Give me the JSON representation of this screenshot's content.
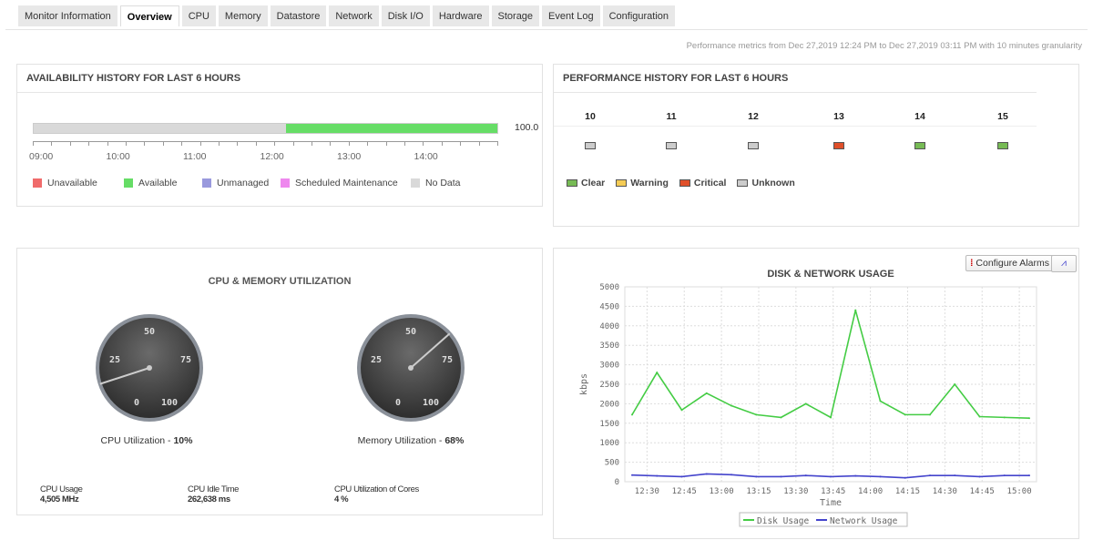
{
  "tabs": [
    "Monitor Information",
    "Overview",
    "CPU",
    "Memory",
    "Datastore",
    "Network",
    "Disk I/O",
    "Hardware",
    "Storage",
    "Event Log",
    "Configuration"
  ],
  "active_tab": "Overview",
  "period_text": "Performance metrics from Dec 27,2019 12:24 PM to Dec 27,2019 03:11 PM with 10 minutes granularity",
  "availability": {
    "title": "AVAILABILITY HISTORY FOR LAST 6 HOURS",
    "value_label": "100.0",
    "available_fraction": 0.455,
    "hours": [
      "09:00",
      "10:00",
      "11:00",
      "12:00",
      "13:00",
      "14:00"
    ],
    "legend": [
      {
        "label": "Unavailable",
        "color": "#f06b6b"
      },
      {
        "label": "Available",
        "color": "#66dd66"
      },
      {
        "label": "Unmanaged",
        "color": "#9999dd"
      },
      {
        "label": "Scheduled Maintenance",
        "color": "#ee88ee"
      },
      {
        "label": "No Data",
        "color": "#d9d9d9"
      }
    ]
  },
  "performance": {
    "title": "PERFORMANCE HISTORY FOR LAST 6 HOURS",
    "hours": [
      {
        "h": "10",
        "status": "Unknown"
      },
      {
        "h": "11",
        "status": "Unknown"
      },
      {
        "h": "12",
        "status": "Unknown"
      },
      {
        "h": "13",
        "status": "Critical"
      },
      {
        "h": "14",
        "status": "Clear"
      },
      {
        "h": "15",
        "status": "Clear"
      }
    ],
    "legend": [
      {
        "label": "Clear",
        "color": "#77bb55"
      },
      {
        "label": "Warning",
        "color": "#f5cc55"
      },
      {
        "label": "Critical",
        "color": "#e0502a"
      },
      {
        "label": "Unknown",
        "color": "#cccccc"
      }
    ]
  },
  "cpu_mem": {
    "title": "CPU & MEMORY UTILIZATION",
    "gauges": [
      {
        "label": "CPU Utilization - ",
        "value": "10%",
        "pct": 10
      },
      {
        "label": "Memory Utilization - ",
        "value": "68%",
        "pct": 68
      }
    ],
    "gauge_ticks": [
      "0",
      "25",
      "50",
      "75",
      "100"
    ],
    "stats": [
      {
        "label": "CPU Usage",
        "value": "4,505 MHz"
      },
      {
        "label": "CPU Idle Time",
        "value": "262,638 ms"
      },
      {
        "label": "CPU Utilization of Cores",
        "value": "4 %"
      }
    ]
  },
  "disk_net": {
    "configure_alarms": "Configure Alarms"
  },
  "chart_data": {
    "type": "line",
    "title": "DISK & NETWORK USAGE",
    "xlabel": "Time",
    "ylabel": "kbps",
    "ylim": [
      0,
      5000
    ],
    "yticks": [
      "0",
      "500",
      "1000",
      "1500",
      "2000",
      "2500",
      "3000",
      "3500",
      "4000",
      "4500",
      "5000"
    ],
    "xticks": [
      "12:30",
      "12:45",
      "13:00",
      "13:15",
      "13:30",
      "13:45",
      "14:00",
      "14:15",
      "14:30",
      "14:45",
      "15:00"
    ],
    "x": [
      "12:24",
      "12:34",
      "12:44",
      "12:54",
      "13:04",
      "13:14",
      "13:24",
      "13:34",
      "13:44",
      "13:54",
      "14:04",
      "14:14",
      "14:24",
      "14:34",
      "14:44",
      "14:54",
      "15:04"
    ],
    "series": [
      {
        "name": "Disk Usage",
        "color": "#44cc44",
        "values": [
          1720,
          2800,
          1840,
          2270,
          1950,
          1720,
          1650,
          2000,
          1650,
          4400,
          2070,
          1720,
          1720,
          2500,
          1670,
          1650,
          1630
        ]
      },
      {
        "name": "Network Usage",
        "color": "#4444cc",
        "values": [
          170,
          150,
          130,
          200,
          180,
          130,
          130,
          160,
          130,
          150,
          130,
          100,
          160,
          160,
          130,
          160,
          160
        ]
      }
    ],
    "grid": true,
    "legend": "bottom"
  }
}
